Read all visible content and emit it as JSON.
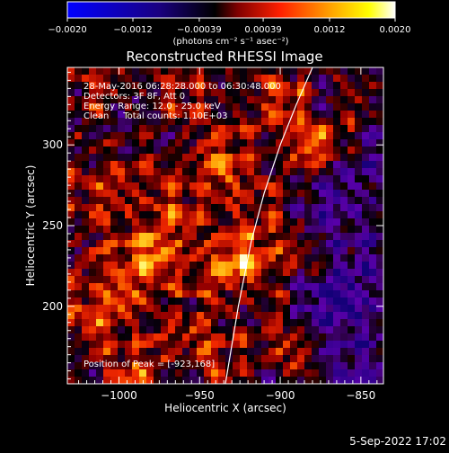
{
  "chart_data": {
    "type": "heatmap",
    "title": "Reconstructed RHESSI Image",
    "xlabel": "Heliocentric X (arcsec)",
    "ylabel": "Heliocentric Y (arcsec)",
    "xlim": [
      -1032,
      -836
    ],
    "ylim": [
      152,
      348
    ],
    "x_ticks": [
      -1000,
      -950,
      -900,
      -850
    ],
    "x_tick_labels": [
      "−1000",
      "−950",
      "−900",
      "−850"
    ],
    "y_ticks": [
      200,
      250,
      300
    ],
    "y_tick_labels": [
      "200",
      "250",
      "300"
    ],
    "colorbar": {
      "vmin": -0.002,
      "vmax": 0.002,
      "tick_values": [
        -0.002,
        -0.0012,
        -0.00039,
        0.00039,
        0.0012,
        0.002
      ],
      "tick_labels": [
        "−0.0020",
        "−0.0012",
        "−0.00039",
        "0.00039",
        "0.0012",
        "0.0020"
      ],
      "label": "(photons cm⁻² s⁻¹ asec⁻²)",
      "colors": [
        "#0000ff",
        "#000000",
        "#ff0000",
        "#ffa500",
        "#ffff00",
        "#ffffff"
      ]
    },
    "annotations": [
      "28-May-2016 06:28:28.000 to 06:30:48.000",
      "Detectors: 3F 8F, Att 0",
      "Energy Range: 12.0 - 25.0 keV",
      "Clean     Total counts: 1.10E+03"
    ],
    "peak_label": "Position of Peak = [-923,168]",
    "peak": [
      -923,
      168
    ],
    "limb_curve": {
      "x": [
        -934,
        -926,
        -918,
        -910,
        -900,
        -890,
        -880
      ],
      "y": [
        152,
        200,
        240,
        270,
        300,
        325,
        348
      ]
    }
  },
  "footer": {
    "timestamp": "5-Sep-2022 17:02"
  }
}
